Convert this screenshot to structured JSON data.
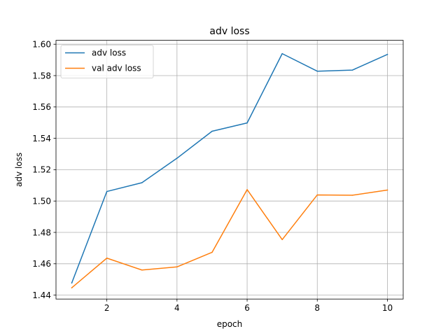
{
  "chart_data": {
    "type": "line",
    "title": "adv loss",
    "xlabel": "epoch",
    "ylabel": "adv loss",
    "xlim": [
      0.55,
      10.45
    ],
    "ylim": [
      1.4375,
      1.6025
    ],
    "xticks": [
      2,
      4,
      6,
      8,
      10
    ],
    "xtick_labels": [
      "2",
      "4",
      "6",
      "8",
      "10"
    ],
    "yticks": [
      1.44,
      1.46,
      1.48,
      1.5,
      1.52,
      1.54,
      1.56,
      1.58,
      1.6
    ],
    "ytick_labels": [
      "1.44",
      "1.46",
      "1.48",
      "1.50",
      "1.52",
      "1.54",
      "1.56",
      "1.58",
      "1.60"
    ],
    "grid": true,
    "legend_position": "top-left",
    "x": [
      1,
      2,
      3,
      4,
      5,
      6,
      7,
      8,
      9,
      10
    ],
    "series": [
      {
        "name": "adv loss",
        "color": "#1f77b4",
        "values": [
          1.4478,
          1.5061,
          1.5117,
          1.5273,
          1.5445,
          1.5498,
          1.594,
          1.5828,
          1.5835,
          1.5935
        ]
      },
      {
        "name": "val adv loss",
        "color": "#ff7f0e",
        "values": [
          1.4447,
          1.4636,
          1.456,
          1.458,
          1.4673,
          1.5073,
          1.4754,
          1.5039,
          1.5037,
          1.507
        ]
      }
    ]
  }
}
